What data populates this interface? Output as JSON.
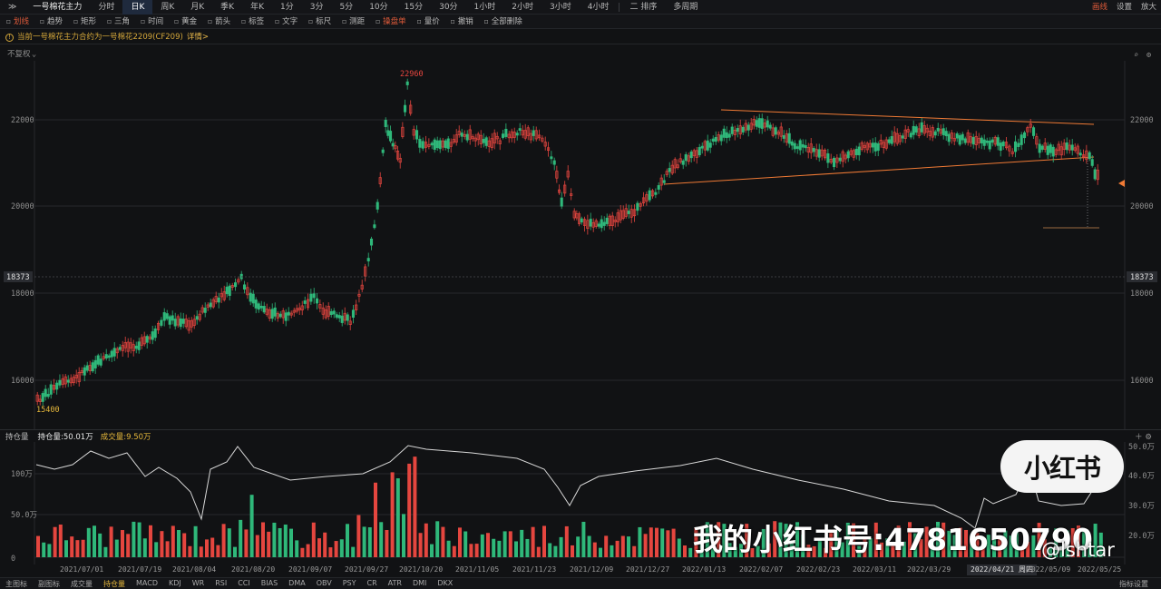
{
  "header": {
    "symbol": "一号棉花主力",
    "tabs": [
      "分时",
      "日K",
      "周K",
      "月K",
      "季K",
      "年K",
      "1分",
      "3分",
      "5分",
      "10分",
      "15分",
      "30分",
      "1小时",
      "2小时",
      "3小时",
      "4小时"
    ],
    "active_tab": "日K",
    "layout_label": "二 排序",
    "multi_period": "多周期",
    "right_items": [
      "画线",
      "设置",
      "放大"
    ]
  },
  "toolbar": {
    "items": [
      "划线",
      "趋势",
      "矩形",
      "三角",
      "时间",
      "黄金",
      "箭头",
      "标签",
      "文字",
      "标尺",
      "测距",
      "操盘单",
      "量价",
      "撤销",
      "全部删除"
    ],
    "active": [
      "划线",
      "操盘单"
    ]
  },
  "notice": {
    "text": "当前一号棉花主力合约为一号棉花2209(CF209)",
    "detail": "详情>"
  },
  "main_panel": {
    "label": "不复权",
    "price_labels": [
      "22000",
      "20000",
      "18000",
      "16000"
    ],
    "crosshair_price": "18373",
    "high_mark": "22960",
    "low_mark": "15400"
  },
  "sub_panel": {
    "label": "持仓量",
    "oi_text": "持仓量:50.01万",
    "vol_text": "成交量:9.50万",
    "left_labels": [
      "100万",
      "50.0万",
      "0"
    ],
    "right_labels": [
      "50.0万",
      "40.0万",
      "30.0万",
      "20.0万"
    ]
  },
  "x_axis": {
    "dates": [
      "2021/07/01",
      "2021/07/19",
      "2021/08/04",
      "2021/08/20",
      "2021/09/07",
      "2021/09/27",
      "2021/10/20",
      "2021/11/05",
      "2021/11/23",
      "2021/12/09",
      "2021/12/27",
      "2022/01/13",
      "2022/02/07",
      "2022/02/23",
      "2022/03/11",
      "2022/03/29",
      "2022/04/21 周四",
      "2022/05/09",
      "2022/05/25"
    ],
    "hover_date": "2022/04/21 周四"
  },
  "indicators": {
    "items": [
      "主图标",
      "副图标",
      "成交量",
      "持仓量",
      "MACD",
      "KDJ",
      "WR",
      "RSI",
      "CCI",
      "BIAS",
      "DMA",
      "OBV",
      "PSY",
      "CR",
      "ATR",
      "DMI",
      "DKX"
    ],
    "active": "持仓量",
    "end_label": "指标设置"
  },
  "watermark": {
    "badge": "小红书",
    "id_text": "我的小红书号:4781650790",
    "handle": "@lshtar"
  },
  "colors": {
    "up": "#e5463f",
    "down": "#2fb87a",
    "trend": "#f07a35",
    "accent": "#e5b73b"
  }
}
